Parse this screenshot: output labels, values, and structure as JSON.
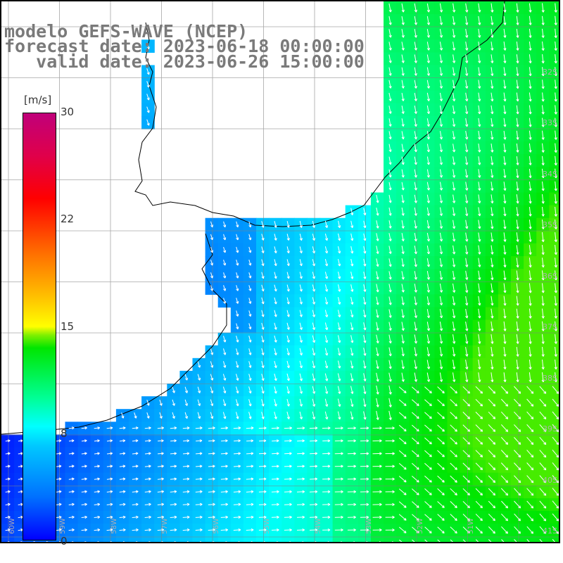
{
  "title": {
    "line1": "modelo GEFS-WAVE (NCEP)",
    "line2": "forecast date: 2023-06-18 00:00:00",
    "line3": "   valid date: 2023-06-26 15:00:00"
  },
  "colorbar": {
    "unit": "[m/s]",
    "ticks": [
      "30",
      "22",
      "15",
      "8",
      "0"
    ],
    "tick_values": [
      30,
      22,
      15,
      8,
      0
    ],
    "colors": [
      "#0000ff",
      "#00ffff",
      "#00e600",
      "#ffff00",
      "#ff0000",
      "#c0007a"
    ]
  },
  "latitude_labels": [
    "32S",
    "33S",
    "34S",
    "35S",
    "36S",
    "37S",
    "38S",
    "39S",
    "40S",
    "41S"
  ],
  "longitude_labels": [
    "60W",
    "59W",
    "58W",
    "57W",
    "56W",
    "55W",
    "54W",
    "53W",
    "52W",
    "51W"
  ],
  "colors": {
    "land": "#ffffff",
    "grid": "#808080",
    "coast": "#000000",
    "arrows": "#ffffff",
    "title": "#7a7a7a"
  }
}
